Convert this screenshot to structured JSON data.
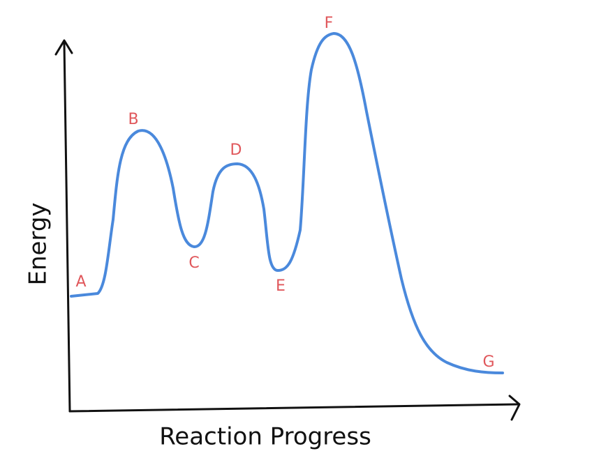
{
  "axes": {
    "x_label": "Reaction Progress",
    "y_label": "Energy"
  },
  "points": [
    {
      "label": "A"
    },
    {
      "label": "B"
    },
    {
      "label": "C"
    },
    {
      "label": "D"
    },
    {
      "label": "E"
    },
    {
      "label": "F"
    },
    {
      "label": "G"
    }
  ]
}
